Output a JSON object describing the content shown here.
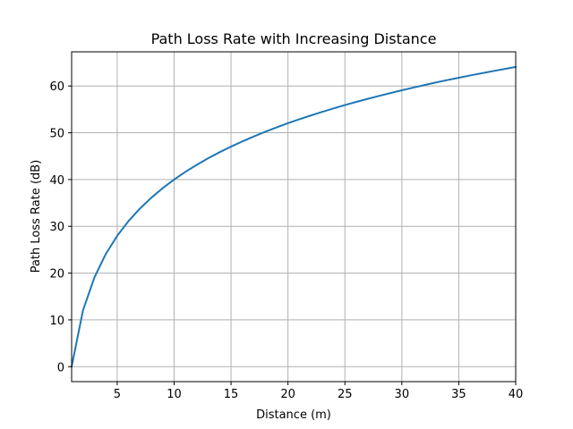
{
  "chart_data": {
    "type": "line",
    "title": "Path Loss Rate with Increasing Distance",
    "xlabel": "Distance (m)",
    "ylabel": "Path Loss Rate (dB)",
    "xlim": [
      1,
      40
    ],
    "ylim": [
      -3.2,
      67.3
    ],
    "xticks": [
      5,
      10,
      15,
      20,
      25,
      30,
      35,
      40
    ],
    "yticks": [
      0,
      10,
      20,
      30,
      40,
      50,
      60
    ],
    "grid": true,
    "legend": "none",
    "colors": {
      "line": "#1f77b4",
      "grid": "#b0b0b0",
      "axes": "#000000"
    },
    "series": [
      {
        "x": [
          1,
          2,
          3,
          4,
          5,
          6,
          7,
          8,
          9,
          10,
          11,
          12,
          13,
          14,
          15,
          16,
          17,
          18,
          19,
          20,
          21,
          22,
          23,
          24,
          25,
          26,
          27,
          28,
          29,
          30,
          31,
          32,
          33,
          34,
          35,
          36,
          37,
          38,
          39,
          40
        ],
        "values": [
          0,
          12.04,
          19.08,
          24.08,
          27.96,
          31.13,
          33.8,
          36.12,
          38.17,
          40.0,
          41.66,
          43.16,
          44.56,
          45.84,
          47.04,
          48.16,
          49.21,
          50.21,
          51.15,
          52.04,
          52.88,
          53.69,
          54.47,
          55.21,
          55.92,
          56.6,
          57.25,
          57.88,
          58.49,
          59.08,
          59.65,
          60.21,
          60.75,
          61.27,
          61.76,
          62.25,
          62.72,
          63.18,
          63.62,
          64.08
        ]
      }
    ]
  }
}
